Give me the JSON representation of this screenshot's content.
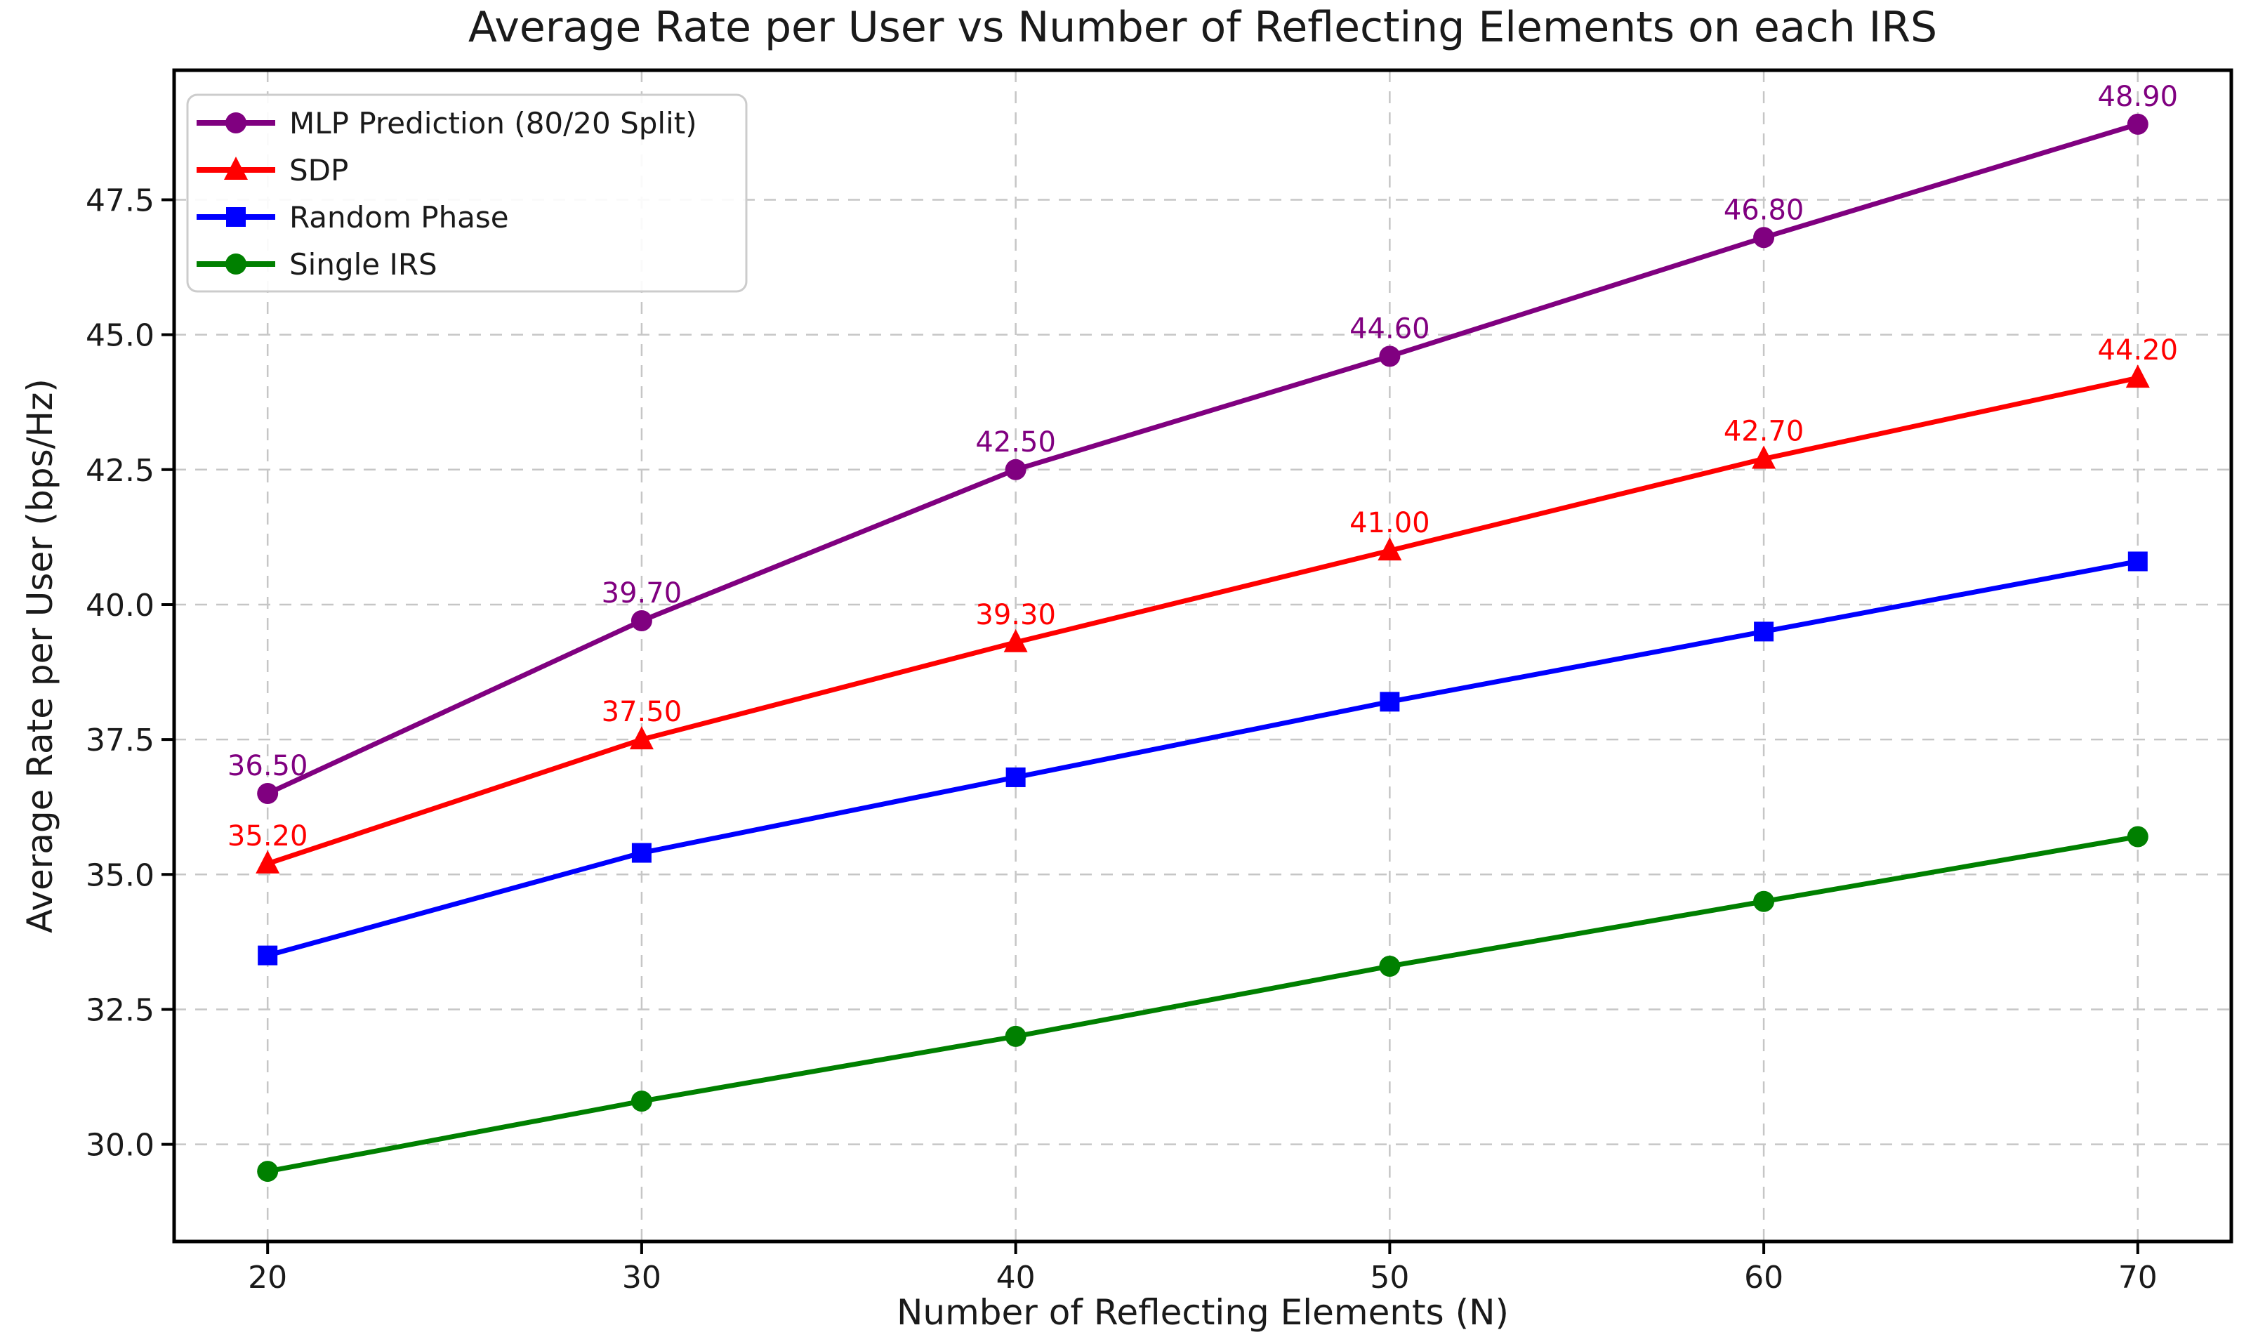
{
  "figure": {
    "title": "Average Rate per User vs Number of Reflecting Elements on each IRS",
    "xlabel": "Number of Reflecting Elements (N)",
    "ylabel": "Average Rate per User (bps/Hz)"
  },
  "chart_data": {
    "type": "line",
    "title": "Average Rate per User vs Number of Reflecting Elements on each IRS",
    "xlabel": "Number of Reflecting Elements (N)",
    "ylabel": "Average Rate per User (bps/Hz)",
    "x": [
      20,
      30,
      40,
      50,
      60,
      70
    ],
    "xticks": [
      20,
      30,
      40,
      50,
      60,
      70
    ],
    "xtick_labels": [
      "20",
      "30",
      "40",
      "50",
      "60",
      "70"
    ],
    "yticks": [
      30.0,
      32.5,
      35.0,
      37.5,
      40.0,
      42.5,
      45.0,
      47.5
    ],
    "ytick_labels": [
      "30.0",
      "32.5",
      "35.0",
      "37.5",
      "40.0",
      "42.5",
      "45.0",
      "47.5"
    ],
    "xlim": [
      17.5,
      72.5
    ],
    "ylim": [
      28.2,
      49.9
    ],
    "grid": true,
    "grid_style": "dashed",
    "legend_position": "upper left",
    "series": [
      {
        "name": "MLP Prediction (80/20 Split)",
        "color": "#800080",
        "marker": "circle",
        "values": [
          36.5,
          39.7,
          42.5,
          44.6,
          46.8,
          48.9
        ],
        "show_labels": true,
        "point_labels": [
          "36.50",
          "39.70",
          "42.50",
          "44.60",
          "46.80",
          "48.90"
        ]
      },
      {
        "name": "SDP",
        "color": "#ff0000",
        "marker": "triangle",
        "values": [
          35.2,
          37.5,
          39.3,
          41.0,
          42.7,
          44.2
        ],
        "show_labels": true,
        "point_labels": [
          "35.20",
          "37.50",
          "39.30",
          "41.00",
          "42.70",
          "44.20"
        ]
      },
      {
        "name": "Random Phase",
        "color": "#0000ff",
        "marker": "square",
        "values": [
          33.5,
          35.4,
          36.8,
          38.2,
          39.5,
          40.8
        ],
        "show_labels": false,
        "point_labels": []
      },
      {
        "name": "Single IRS",
        "color": "#008000",
        "marker": "circle",
        "values": [
          29.5,
          30.8,
          32.0,
          33.3,
          34.5,
          35.7
        ],
        "show_labels": false,
        "point_labels": []
      }
    ],
    "colors": {
      "text": "#1a1a1a",
      "grid": "#c6c6c6",
      "spine": "#000000",
      "legend_border": "#cccccc",
      "legend_bg": "#ffffff"
    }
  }
}
